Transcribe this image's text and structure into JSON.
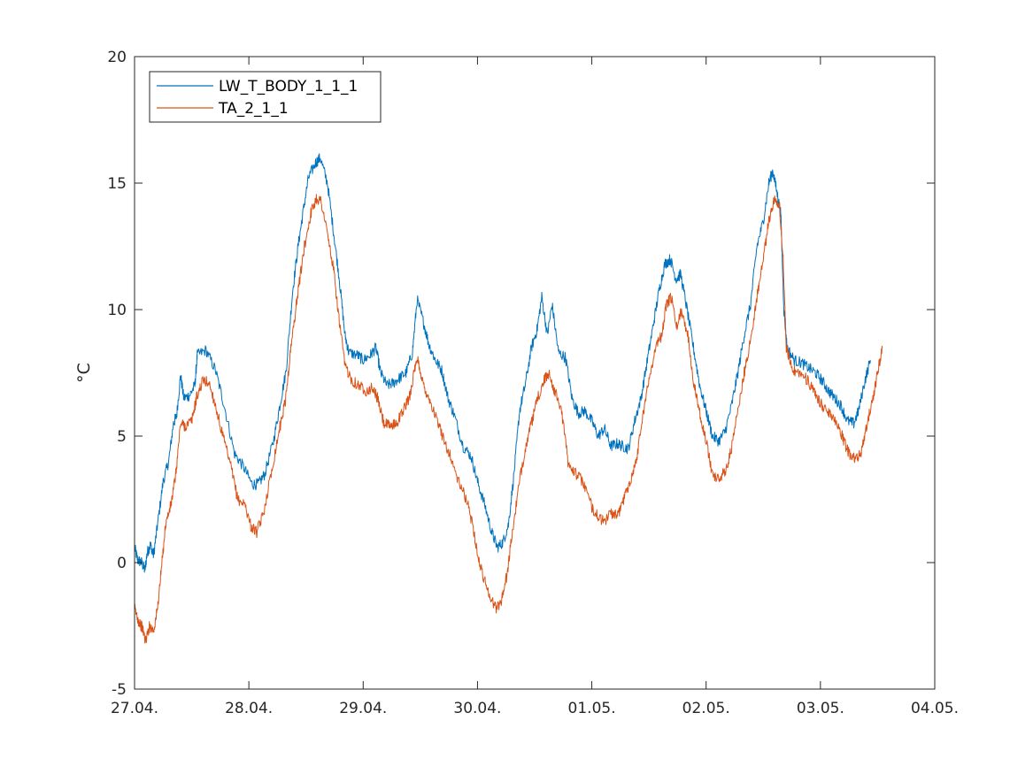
{
  "chart_data": {
    "type": "line",
    "xlabel": "",
    "ylabel": "°C",
    "xlim": [
      "2015-04-27",
      "2015-05-04"
    ],
    "ylim": [
      -5,
      20
    ],
    "xticks": [
      "27.04.",
      "28.04.",
      "29.04.",
      "30.04.",
      "01.05.",
      "02.05.",
      "03.05.",
      "04.05."
    ],
    "yticks": [
      "-5",
      "0",
      "5",
      "10",
      "15",
      "20"
    ],
    "grid": false,
    "legend_position": "top-left",
    "series": [
      {
        "name": "LW_T_BODY_1_1_1",
        "color": "#0072BD",
        "points": [
          [
            "2015-04-27 00:00",
            0.6
          ],
          [
            "2015-04-27 00:40",
            0.1
          ],
          [
            "2015-04-27 01:30",
            0.0
          ],
          [
            "2015-04-27 02:10",
            -0.3
          ],
          [
            "2015-04-27 02:40",
            0.4
          ],
          [
            "2015-04-27 03:20",
            0.7
          ],
          [
            "2015-04-27 04:00",
            0.3
          ],
          [
            "2015-04-27 04:50",
            1.5
          ],
          [
            "2015-04-27 06:00",
            3.2
          ],
          [
            "2015-04-27 07:10",
            4.0
          ],
          [
            "2015-04-27 08:10",
            5.5
          ],
          [
            "2015-04-27 08:50",
            5.8
          ],
          [
            "2015-04-27 09:40",
            7.4
          ],
          [
            "2015-04-27 10:20",
            6.5
          ],
          [
            "2015-04-27 11:30",
            6.6
          ],
          [
            "2015-04-27 12:40",
            7.0
          ],
          [
            "2015-04-27 13:10",
            8.2
          ],
          [
            "2015-04-27 15:00",
            8.4
          ],
          [
            "2015-04-27 17:00",
            7.6
          ],
          [
            "2015-04-27 18:50",
            6.2
          ],
          [
            "2015-04-27 21:00",
            4.3
          ],
          [
            "2015-04-27 22:50",
            3.8
          ],
          [
            "2015-04-28 00:40",
            3.1
          ],
          [
            "2015-04-28 02:00",
            3.1
          ],
          [
            "2015-04-28 03:20",
            3.5
          ],
          [
            "2015-04-28 05:10",
            4.8
          ],
          [
            "2015-04-28 06:30",
            6.2
          ],
          [
            "2015-04-28 07:50",
            7.6
          ],
          [
            "2015-04-28 09:10",
            10.7
          ],
          [
            "2015-04-28 10:20",
            12.5
          ],
          [
            "2015-04-28 11:20",
            13.8
          ],
          [
            "2015-04-28 12:30",
            15.2
          ],
          [
            "2015-04-28 14:00",
            15.8
          ],
          [
            "2015-04-28 15:00",
            16.0
          ],
          [
            "2015-04-28 16:30",
            15.0
          ],
          [
            "2015-04-28 17:50",
            13.0
          ],
          [
            "2015-04-28 19:00",
            11.2
          ],
          [
            "2015-04-28 20:10",
            9.0
          ],
          [
            "2015-04-28 21:00",
            8.3
          ],
          [
            "2015-04-28 22:50",
            8.2
          ],
          [
            "2015-04-29 00:00",
            8.0
          ],
          [
            "2015-04-29 01:30",
            8.2
          ],
          [
            "2015-04-29 02:40",
            8.5
          ],
          [
            "2015-04-29 03:40",
            7.5
          ],
          [
            "2015-04-29 05:00",
            7.0
          ],
          [
            "2015-04-29 06:20",
            7.1
          ],
          [
            "2015-04-29 07:40",
            7.3
          ],
          [
            "2015-04-29 09:00",
            7.5
          ],
          [
            "2015-04-29 10:20",
            8.3
          ],
          [
            "2015-04-29 11:20",
            10.4
          ],
          [
            "2015-04-29 12:40",
            9.5
          ],
          [
            "2015-04-29 13:50",
            8.6
          ],
          [
            "2015-04-29 15:10",
            8.0
          ],
          [
            "2015-04-29 16:30",
            7.6
          ],
          [
            "2015-04-29 17:50",
            6.5
          ],
          [
            "2015-04-29 19:10",
            5.8
          ],
          [
            "2015-04-29 21:00",
            4.6
          ],
          [
            "2015-04-29 22:40",
            4.2
          ],
          [
            "2015-04-30 00:00",
            3.2
          ],
          [
            "2015-04-30 01:30",
            2.3
          ],
          [
            "2015-04-30 03:00",
            1.2
          ],
          [
            "2015-04-30 04:10",
            0.6
          ],
          [
            "2015-04-30 05:20",
            0.8
          ],
          [
            "2015-04-30 06:30",
            1.5
          ],
          [
            "2015-04-30 07:40",
            3.5
          ],
          [
            "2015-04-30 08:50",
            6.0
          ],
          [
            "2015-04-30 10:00",
            7.0
          ],
          [
            "2015-04-30 11:20",
            8.5
          ],
          [
            "2015-04-30 12:30",
            9.2
          ],
          [
            "2015-04-30 13:30",
            10.5
          ],
          [
            "2015-04-30 14:40",
            9.0
          ],
          [
            "2015-04-30 15:40",
            10.2
          ],
          [
            "2015-04-30 17:00",
            8.3
          ],
          [
            "2015-04-30 18:30",
            8.1
          ],
          [
            "2015-04-30 19:50",
            6.5
          ],
          [
            "2015-04-30 21:10",
            5.9
          ],
          [
            "2015-04-30 22:30",
            6.0
          ],
          [
            "2015-05-01 00:00",
            5.6
          ],
          [
            "2015-05-01 01:20",
            5.0
          ],
          [
            "2015-05-01 02:40",
            5.3
          ],
          [
            "2015-05-01 04:00",
            4.6
          ],
          [
            "2015-05-01 05:20",
            4.7
          ],
          [
            "2015-05-01 06:30",
            4.6
          ],
          [
            "2015-05-01 07:40",
            4.5
          ],
          [
            "2015-05-01 09:00",
            5.6
          ],
          [
            "2015-05-01 10:20",
            6.5
          ],
          [
            "2015-05-01 11:40",
            8.0
          ],
          [
            "2015-05-01 13:00",
            9.5
          ],
          [
            "2015-05-01 14:10",
            10.8
          ],
          [
            "2015-05-01 15:20",
            11.8
          ],
          [
            "2015-05-01 16:30",
            12.0
          ],
          [
            "2015-05-01 17:40",
            11.2
          ],
          [
            "2015-05-01 18:40",
            11.4
          ],
          [
            "2015-05-01 20:00",
            10.0
          ],
          [
            "2015-05-01 21:20",
            8.5
          ],
          [
            "2015-05-01 22:40",
            7.0
          ],
          [
            "2015-05-02 00:00",
            6.0
          ],
          [
            "2015-05-02 01:20",
            5.0
          ],
          [
            "2015-05-02 02:40",
            4.8
          ],
          [
            "2015-05-02 04:00",
            5.2
          ],
          [
            "2015-05-02 05:20",
            6.2
          ],
          [
            "2015-05-02 06:40",
            7.5
          ],
          [
            "2015-05-02 08:00",
            9.0
          ],
          [
            "2015-05-02 09:20",
            10.2
          ],
          [
            "2015-05-02 10:40",
            12.5
          ],
          [
            "2015-05-02 12:00",
            13.5
          ],
          [
            "2015-05-02 13:10",
            15.0
          ],
          [
            "2015-05-02 14:00",
            15.5
          ],
          [
            "2015-05-02 15:00",
            14.5
          ],
          [
            "2015-05-02 15:40",
            13.8
          ],
          [
            "2015-05-02 16:20",
            10.0
          ],
          [
            "2015-05-02 17:00",
            8.5
          ],
          [
            "2015-05-02 18:30",
            8.0
          ],
          [
            "2015-05-02 20:00",
            7.9
          ],
          [
            "2015-05-02 21:30",
            7.7
          ],
          [
            "2015-05-02 23:00",
            7.5
          ],
          [
            "2015-05-03 00:20",
            7.2
          ],
          [
            "2015-05-03 01:40",
            6.8
          ],
          [
            "2015-05-03 03:00",
            6.5
          ],
          [
            "2015-05-03 04:20",
            6.2
          ],
          [
            "2015-05-03 05:40",
            5.6
          ],
          [
            "2015-05-03 07:00",
            5.5
          ],
          [
            "2015-05-03 08:00",
            6.0
          ],
          [
            "2015-05-03 09:20",
            7.2
          ],
          [
            "2015-05-03 10:30",
            8.0
          ]
        ]
      },
      {
        "name": "TA_2_1_1",
        "color": "#D95319",
        "points": [
          [
            "2015-04-27 00:00",
            -1.8
          ],
          [
            "2015-04-27 00:50",
            -2.3
          ],
          [
            "2015-04-27 01:40",
            -2.6
          ],
          [
            "2015-04-27 02:20",
            -3.1
          ],
          [
            "2015-04-27 03:10",
            -2.5
          ],
          [
            "2015-04-27 04:00",
            -2.7
          ],
          [
            "2015-04-27 04:50",
            -1.8
          ],
          [
            "2015-04-27 05:40",
            -0.2
          ],
          [
            "2015-04-27 06:30",
            1.5
          ],
          [
            "2015-04-27 07:40",
            2.3
          ],
          [
            "2015-04-27 08:40",
            3.5
          ],
          [
            "2015-04-27 09:40",
            5.5
          ],
          [
            "2015-04-27 10:40",
            5.4
          ],
          [
            "2015-04-27 12:00",
            5.6
          ],
          [
            "2015-04-27 13:00",
            6.5
          ],
          [
            "2015-04-27 14:20",
            7.2
          ],
          [
            "2015-04-27 15:40",
            7.1
          ],
          [
            "2015-04-27 17:00",
            6.2
          ],
          [
            "2015-04-27 18:40",
            4.9
          ],
          [
            "2015-04-27 20:20",
            3.7
          ],
          [
            "2015-04-27 21:40",
            2.5
          ],
          [
            "2015-04-27 23:10",
            2.3
          ],
          [
            "2015-04-28 00:30",
            1.4
          ],
          [
            "2015-04-28 01:40",
            1.2
          ],
          [
            "2015-04-28 03:00",
            1.9
          ],
          [
            "2015-04-28 04:40",
            3.5
          ],
          [
            "2015-04-28 06:20",
            5.2
          ],
          [
            "2015-04-28 07:40",
            6.4
          ],
          [
            "2015-04-28 08:50",
            8.5
          ],
          [
            "2015-04-28 10:10",
            10.5
          ],
          [
            "2015-04-28 11:40",
            12.5
          ],
          [
            "2015-04-28 13:00",
            13.8
          ],
          [
            "2015-04-28 14:10",
            14.4
          ],
          [
            "2015-04-28 15:10",
            14.3
          ],
          [
            "2015-04-28 16:30",
            13.0
          ],
          [
            "2015-04-28 17:50",
            11.5
          ],
          [
            "2015-04-28 19:00",
            9.5
          ],
          [
            "2015-04-28 20:10",
            7.8
          ],
          [
            "2015-04-28 21:40",
            7.2
          ],
          [
            "2015-04-28 23:10",
            7.0
          ],
          [
            "2015-04-29 00:40",
            6.8
          ],
          [
            "2015-04-29 02:00",
            6.9
          ],
          [
            "2015-04-29 03:00",
            6.5
          ],
          [
            "2015-04-29 04:20",
            5.5
          ],
          [
            "2015-04-29 05:30",
            5.4
          ],
          [
            "2015-04-29 07:00",
            5.5
          ],
          [
            "2015-04-29 08:20",
            6.0
          ],
          [
            "2015-04-29 09:40",
            6.5
          ],
          [
            "2015-04-29 10:40",
            7.5
          ],
          [
            "2015-04-29 11:30",
            8.0
          ],
          [
            "2015-04-29 12:40",
            7.0
          ],
          [
            "2015-04-29 13:50",
            6.5
          ],
          [
            "2015-04-29 15:10",
            5.8
          ],
          [
            "2015-04-29 16:40",
            5.0
          ],
          [
            "2015-04-29 18:20",
            4.2
          ],
          [
            "2015-04-29 20:00",
            3.2
          ],
          [
            "2015-04-29 21:40",
            2.5
          ],
          [
            "2015-04-29 23:00",
            1.5
          ],
          [
            "2015-04-30 00:20",
            0.0
          ],
          [
            "2015-04-30 01:40",
            -0.8
          ],
          [
            "2015-04-30 03:00",
            -1.5
          ],
          [
            "2015-04-30 04:00",
            -1.8
          ],
          [
            "2015-04-30 05:00",
            -1.5
          ],
          [
            "2015-04-30 06:10",
            -0.5
          ],
          [
            "2015-04-30 07:20",
            1.2
          ],
          [
            "2015-04-30 08:40",
            3.0
          ],
          [
            "2015-04-30 10:00",
            4.5
          ],
          [
            "2015-04-30 11:20",
            5.5
          ],
          [
            "2015-04-30 12:40",
            6.5
          ],
          [
            "2015-04-30 14:00",
            7.2
          ],
          [
            "2015-04-30 15:00",
            7.5
          ],
          [
            "2015-04-30 16:10",
            6.8
          ],
          [
            "2015-04-30 17:40",
            6.0
          ],
          [
            "2015-04-30 19:00",
            4.0
          ],
          [
            "2015-04-30 20:40",
            3.5
          ],
          [
            "2015-04-30 22:10",
            3.2
          ],
          [
            "2015-05-01 00:00",
            2.2
          ],
          [
            "2015-05-01 01:20",
            1.8
          ],
          [
            "2015-05-01 02:40",
            1.6
          ],
          [
            "2015-05-01 04:00",
            2.0
          ],
          [
            "2015-05-01 05:20",
            1.8
          ],
          [
            "2015-05-01 06:40",
            2.5
          ],
          [
            "2015-05-01 08:00",
            3.2
          ],
          [
            "2015-05-01 09:20",
            4.0
          ],
          [
            "2015-05-01 10:40",
            5.8
          ],
          [
            "2015-05-01 12:00",
            7.2
          ],
          [
            "2015-05-01 13:20",
            8.5
          ],
          [
            "2015-05-01 14:40",
            9.0
          ],
          [
            "2015-05-01 15:40",
            10.2
          ],
          [
            "2015-05-01 16:40",
            10.5
          ],
          [
            "2015-05-01 17:50",
            9.3
          ],
          [
            "2015-05-01 18:50",
            10.0
          ],
          [
            "2015-05-01 20:10",
            9.0
          ],
          [
            "2015-05-01 21:30",
            7.0
          ],
          [
            "2015-05-01 22:50",
            5.8
          ],
          [
            "2015-05-02 00:00",
            4.8
          ],
          [
            "2015-05-02 01:20",
            3.5
          ],
          [
            "2015-05-02 02:40",
            3.3
          ],
          [
            "2015-05-02 04:00",
            3.6
          ],
          [
            "2015-05-02 05:20",
            4.5
          ],
          [
            "2015-05-02 06:40",
            6.0
          ],
          [
            "2015-05-02 08:00",
            7.5
          ],
          [
            "2015-05-02 09:20",
            8.8
          ],
          [
            "2015-05-02 10:40",
            10.5
          ],
          [
            "2015-05-02 12:00",
            12.0
          ],
          [
            "2015-05-02 13:10",
            13.5
          ],
          [
            "2015-05-02 14:20",
            14.4
          ],
          [
            "2015-05-02 15:20",
            14.2
          ],
          [
            "2015-05-02 16:10",
            12.0
          ],
          [
            "2015-05-02 16:50",
            8.5
          ],
          [
            "2015-05-02 18:20",
            7.6
          ],
          [
            "2015-05-02 19:50",
            7.5
          ],
          [
            "2015-05-02 21:20",
            7.2
          ],
          [
            "2015-05-02 22:40",
            6.7
          ],
          [
            "2015-05-03 00:00",
            6.3
          ],
          [
            "2015-05-03 01:20",
            6.0
          ],
          [
            "2015-05-03 02:40",
            5.8
          ],
          [
            "2015-05-03 04:00",
            5.3
          ],
          [
            "2015-05-03 05:20",
            4.6
          ],
          [
            "2015-05-03 06:20",
            4.2
          ],
          [
            "2015-05-03 07:40",
            4.1
          ],
          [
            "2015-05-03 08:40",
            4.4
          ],
          [
            "2015-05-03 09:50",
            5.5
          ],
          [
            "2015-05-03 11:00",
            6.5
          ],
          [
            "2015-05-03 12:00",
            7.5
          ],
          [
            "2015-05-03 13:00",
            8.5
          ]
        ]
      }
    ]
  }
}
